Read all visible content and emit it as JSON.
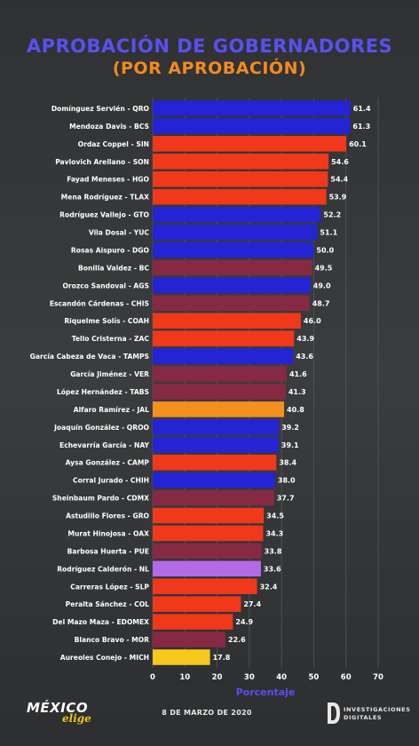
{
  "header": {
    "title": "APROBACIÓN DE GOBERNADORES",
    "subtitle": "(POR APROBACIÓN)"
  },
  "footer": {
    "date": "8 DE MARZO DE 2020",
    "logo_left_main": "MÉXICO",
    "logo_left_script": "elige",
    "logo_right_line1": "INVESTIGACIONES",
    "logo_right_line2": "DIGITALES"
  },
  "colors": {
    "blue": "#2424d4",
    "red": "#f0381a",
    "maroon": "#862a44",
    "orange": "#f5901e",
    "lilac": "#b36ae6",
    "yellow": "#f7c81c"
  },
  "chart_data": {
    "type": "bar",
    "orientation": "horizontal",
    "xlabel": "Porcentaje",
    "xlim": [
      0,
      70
    ],
    "xticks": [
      0,
      10,
      20,
      30,
      40,
      50,
      60,
      70
    ],
    "grid": "vertical",
    "categories": [
      "Domínguez Servién - QRO",
      "Mendoza Davis - BCS",
      "Ordaz Coppel - SIN",
      "Pavlovich Arellano - SON",
      "Fayad Meneses - HGO",
      "Mena Rodríguez - TLAX",
      "Rodríguez Vallejo - GTO",
      "Vila Dosal - YUC",
      "Rosas Aispuro - DGO",
      "Bonilla Valdez - BC",
      "Orozco Sandoval - AGS",
      "Escandón Cárdenas - CHIS",
      "Riquelme Solís - COAH",
      "Tello Cristerna - ZAC",
      "García Cabeza de Vaca - TAMPS",
      "García Jiménez - VER",
      "López Hernández - TABS",
      "Alfaro Ramírez - JAL",
      "Joaquín González - QROO",
      "Echevarría García - NAY",
      "Aysa González - CAMP",
      "Corral Jurado - CHIH",
      "Sheinbaum Pardo - CDMX",
      "Astudillo Flores - GRO",
      "Murat Hinojosa - OAX",
      "Barbosa Huerta - PUE",
      "Rodríguez Calderón - NL",
      "Carreras López - SLP",
      "Peralta Sánchez - COL",
      "Del Mazo Maza - EDOMEX",
      "Blanco Bravo - MOR",
      "Aureoles Conejo - MICH"
    ],
    "values": [
      61.4,
      61.3,
      60.1,
      54.6,
      54.4,
      53.9,
      52.2,
      51.1,
      50.0,
      49.5,
      49.0,
      48.7,
      46.0,
      43.9,
      43.6,
      41.6,
      41.3,
      40.8,
      39.2,
      39.1,
      38.4,
      38.0,
      37.7,
      34.5,
      34.3,
      33.8,
      33.6,
      32.4,
      27.4,
      24.9,
      22.6,
      17.8
    ],
    "value_labels": [
      "61.4",
      "61.3",
      "60.1",
      "54.6",
      "54.4",
      "53.9",
      "52.2",
      "51.1",
      "50.0",
      "49.5",
      "49.0",
      "48.7",
      "46.0",
      "43.9",
      "43.6",
      "41.6",
      "41.3",
      "40.8",
      "39.2",
      "39.1",
      "38.4",
      "38.0",
      "37.7",
      "34.5",
      "34.3",
      "33.8",
      "33.6",
      "32.4",
      "27.4",
      "24.9",
      "22.6",
      "17.8"
    ],
    "bar_colors": [
      "blue",
      "blue",
      "red",
      "red",
      "red",
      "red",
      "blue",
      "blue",
      "blue",
      "maroon",
      "blue",
      "maroon",
      "red",
      "red",
      "blue",
      "maroon",
      "maroon",
      "orange",
      "blue",
      "blue",
      "red",
      "blue",
      "maroon",
      "red",
      "red",
      "maroon",
      "lilac",
      "red",
      "red",
      "red",
      "maroon",
      "yellow"
    ]
  }
}
